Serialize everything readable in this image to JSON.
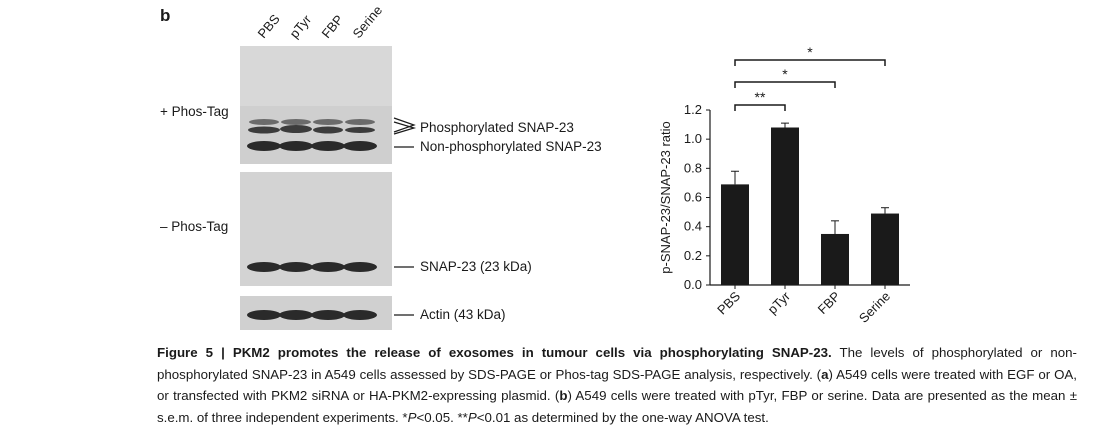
{
  "panel_label": "b",
  "lanes": [
    "PBS",
    "pTyr",
    "FBP",
    "Serine"
  ],
  "blots": {
    "phos_tag_label": "+ Phos-Tag",
    "no_phos_tag_label": "– Phos-Tag",
    "phosphorylated_label": "Phosphorylated SNAP-23",
    "non_phosphorylated_label": "Non-phosphorylated SNAP-23",
    "snap23_label": "SNAP-23 (23 kDa)",
    "actin_label": "Actin (43 kDa)"
  },
  "significance": [
    "**",
    "*",
    "*"
  ],
  "chart_data": {
    "type": "bar",
    "categories": [
      "PBS",
      "pTyr",
      "FBP",
      "Serine"
    ],
    "values": [
      0.69,
      1.08,
      0.35,
      0.49
    ],
    "errors": [
      0.09,
      0.03,
      0.09,
      0.04
    ],
    "ylabel": "p-SNAP-23/SNAP-23 ratio",
    "ylim": [
      0,
      1.2
    ],
    "yticks": [
      "0.0",
      "0.2",
      "0.4",
      "0.6",
      "0.8",
      "1.0",
      "1.2"
    ],
    "comparisons": [
      {
        "from": "PBS",
        "to": "pTyr",
        "label": "**"
      },
      {
        "from": "PBS",
        "to": "FBP",
        "label": "*"
      },
      {
        "from": "PBS",
        "to": "Serine",
        "label": "*"
      }
    ],
    "bar_color": "#1a1a1a"
  },
  "caption": {
    "figure_label": "Figure 5 | PKM2 promotes the release of exosomes in tumour cells via phosphorylating SNAP-23.",
    "part1": " The levels of phosphorylated or non-phosphorylated SNAP-23 in A549 cells assessed by SDS-PAGE or Phos-tag SDS-PAGE analysis, respectively. (",
    "a_letter": "a",
    "part2": ") A549 cells were treated with EGF or OA, or transfected with PKM2 siRNA or HA-PKM2-expressing plasmid. (",
    "b_letter": "b",
    "part3": ") A549 cells were treated with pTyr, FBP or serine. Data are presented as the mean ± s.e.m. of three independent experiments. *",
    "p_symbol": "P",
    "part4": "<0.05. **",
    "part5": "<0.01 as determined by the one-way ANOVA test."
  }
}
